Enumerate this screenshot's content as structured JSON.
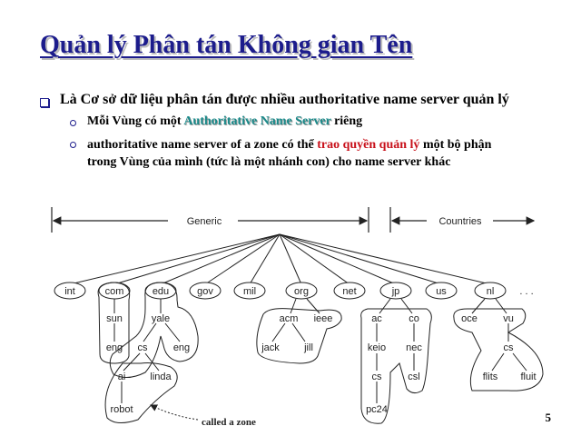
{
  "title": "Quản lý Phân tán Không gian Tên",
  "bullet1": "Là Cơ sở dữ liệu phân tán được nhiều authoritative name server quản lý",
  "bullet2a": {
    "pre": "Mỗi Vùng có một ",
    "highlight": "Authoritative Name Server",
    "post": " riêng"
  },
  "bullet2b": {
    "pre": "authoritative name server of a zone có thể ",
    "highlight": "trao quyền quản lý",
    "post": " một bộ phận",
    "line2": "trong Vùng của mình (tức là một nhánh con) cho name server khác"
  },
  "figure": {
    "generic_label": "Generic",
    "countries_label": "Countries",
    "ellipsis": ". . .",
    "zone_note": "called a zone",
    "top_level": [
      "int",
      "com",
      "edu",
      "gov",
      "mil",
      "org",
      "net",
      "jp",
      "us",
      "nl"
    ],
    "com_children": [
      "sun"
    ],
    "sun_children": [
      "eng"
    ],
    "edu_children": [
      "yale"
    ],
    "yale_children": [
      "cs",
      "eng"
    ],
    "yale_cs_children": [
      "ai",
      "linda"
    ],
    "ai_children": [
      "robot"
    ],
    "org_children": [
      "acm",
      "ieee"
    ],
    "acm_children": [
      "jack",
      "jill"
    ],
    "jp_children": [
      "ac",
      "co"
    ],
    "ac_children": [
      "keio"
    ],
    "keio_children": [
      "cs"
    ],
    "keio_cs_children": [
      "pc24"
    ],
    "co_children": [
      "nec"
    ],
    "nec_children": [
      "csl"
    ],
    "nl_children": [
      "oce",
      "vu"
    ],
    "vu_children": [
      "cs"
    ],
    "vu_cs_children": [
      "flits",
      "fluit"
    ]
  },
  "page_number": "5"
}
